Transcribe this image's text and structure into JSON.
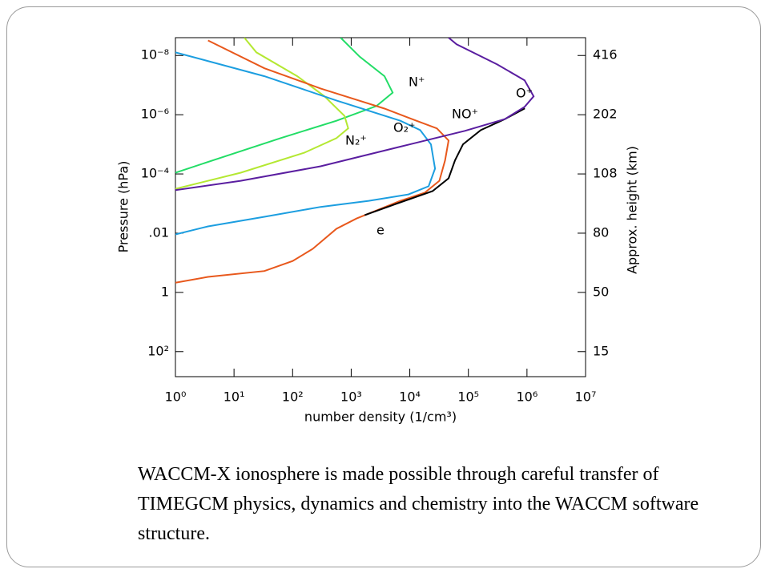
{
  "chart_data": {
    "type": "line",
    "xlabel": "number density (1/cm³)",
    "ylabel": "Pressure (hPa)",
    "y2label": "Approx. height (km)",
    "xscale": "log",
    "yscale": "log",
    "xlim": [
      1,
      10000000
    ],
    "ylim": [
      700,
      2.5e-09
    ],
    "xticks": [
      {
        "value": 1,
        "label": "10⁰"
      },
      {
        "value": 10,
        "label": "10¹"
      },
      {
        "value": 100,
        "label": "10²"
      },
      {
        "value": 1000,
        "label": "10³"
      },
      {
        "value": 10000,
        "label": "10⁴"
      },
      {
        "value": 100000,
        "label": "10⁵"
      },
      {
        "value": 1000000,
        "label": "10⁶"
      },
      {
        "value": 10000000,
        "label": "10⁷"
      }
    ],
    "yticks": [
      {
        "value": 1e-08,
        "label": "10⁻⁸"
      },
      {
        "value": 1e-06,
        "label": "10⁻⁶"
      },
      {
        "value": 0.0001,
        "label": "10⁻⁴"
      },
      {
        "value": 0.01,
        "label": ".01"
      },
      1,
      {
        "value": 100,
        "label": "10²"
      }
    ],
    "y2tick_labels": [
      "416",
      "202",
      "108",
      "80",
      "50",
      "15"
    ],
    "series": [
      {
        "name": "N⁺",
        "color": "#22dd66",
        "x": [
          1,
          6.8,
          62,
          560,
          2700,
          5100,
          3700,
          1400,
          660
        ],
        "values": [
          9.1e-05,
          2.6e-05,
          6.2e-06,
          1.6e-06,
          5.1e-07,
          1.8e-07,
          5e-08,
          1.1e-08,
          2.5e-09
        ]
      },
      {
        "name": "N₂⁺",
        "color": "#b4e832",
        "x": [
          1,
          13,
          160,
          560,
          890,
          770,
          350,
          120,
          24,
          15
        ],
        "values": [
          0.00032,
          9.1e-05,
          1.9e-05,
          6.2e-06,
          2.9e-06,
          1.1e-06,
          2.4e-07,
          5e-08,
          7.8e-09,
          2.5e-09
        ]
      },
      {
        "name": "O₂⁺",
        "color": "#1c9ee0",
        "x": [
          1,
          3.6,
          33,
          300,
          2000,
          9500,
          21000,
          27000,
          23000,
          15000,
          6900,
          560,
          33,
          1
        ],
        "values": [
          0.011,
          0.0059,
          0.0028,
          0.0013,
          0.00081,
          0.00049,
          0.00026,
          6.6e-05,
          1e-05,
          3.3e-06,
          1.6e-06,
          3.3e-07,
          5e-08,
          7.8e-09
        ]
      },
      {
        "name": "NO⁺",
        "color": "#e8581c",
        "x": [
          1,
          3.6,
          33,
          100,
          220,
          560,
          1230,
          6900,
          18000,
          32000,
          40000,
          46000,
          29000,
          13000,
          3700,
          300,
          33,
          3.6
        ],
        "values": [
          0.47,
          0.3,
          0.19,
          0.087,
          0.034,
          0.0071,
          0.0032,
          0.00081,
          0.00043,
          0.00017,
          3.5e-05,
          7.4e-06,
          2.9e-06,
          1.6e-06,
          6.2e-07,
          1.3e-07,
          2.7e-08,
          3.1e-09
        ]
      },
      {
        "name": "e",
        "color": "#000000",
        "x": [
          1700,
          6900,
          24500,
          46000,
          59000,
          81000,
          163000,
          420000,
          920000
        ],
        "values": [
          0.00245,
          0.00091,
          0.00038,
          0.00014,
          3.5e-05,
          1e-05,
          3.3e-06,
          1.4e-06,
          6.1e-07
        ]
      },
      {
        "name": "O⁺",
        "color": "#5a1ea0",
        "x": [
          1,
          13,
          300,
          6900,
          87000,
          420000,
          910000,
          1300000,
          910000,
          310000,
          63000,
          46000
        ],
        "values": [
          0.00035,
          0.00017,
          5.5e-05,
          1.2e-05,
          3.5e-06,
          1.4e-06,
          5.4e-07,
          2.4e-07,
          6.9e-08,
          2e-08,
          4.2e-09,
          2.5e-09
        ]
      }
    ]
  },
  "caption": "WACCM-X ionosphere is made possible through careful transfer of TIMEGCM physics, dynamics and chemistry into the WACCM software structure."
}
